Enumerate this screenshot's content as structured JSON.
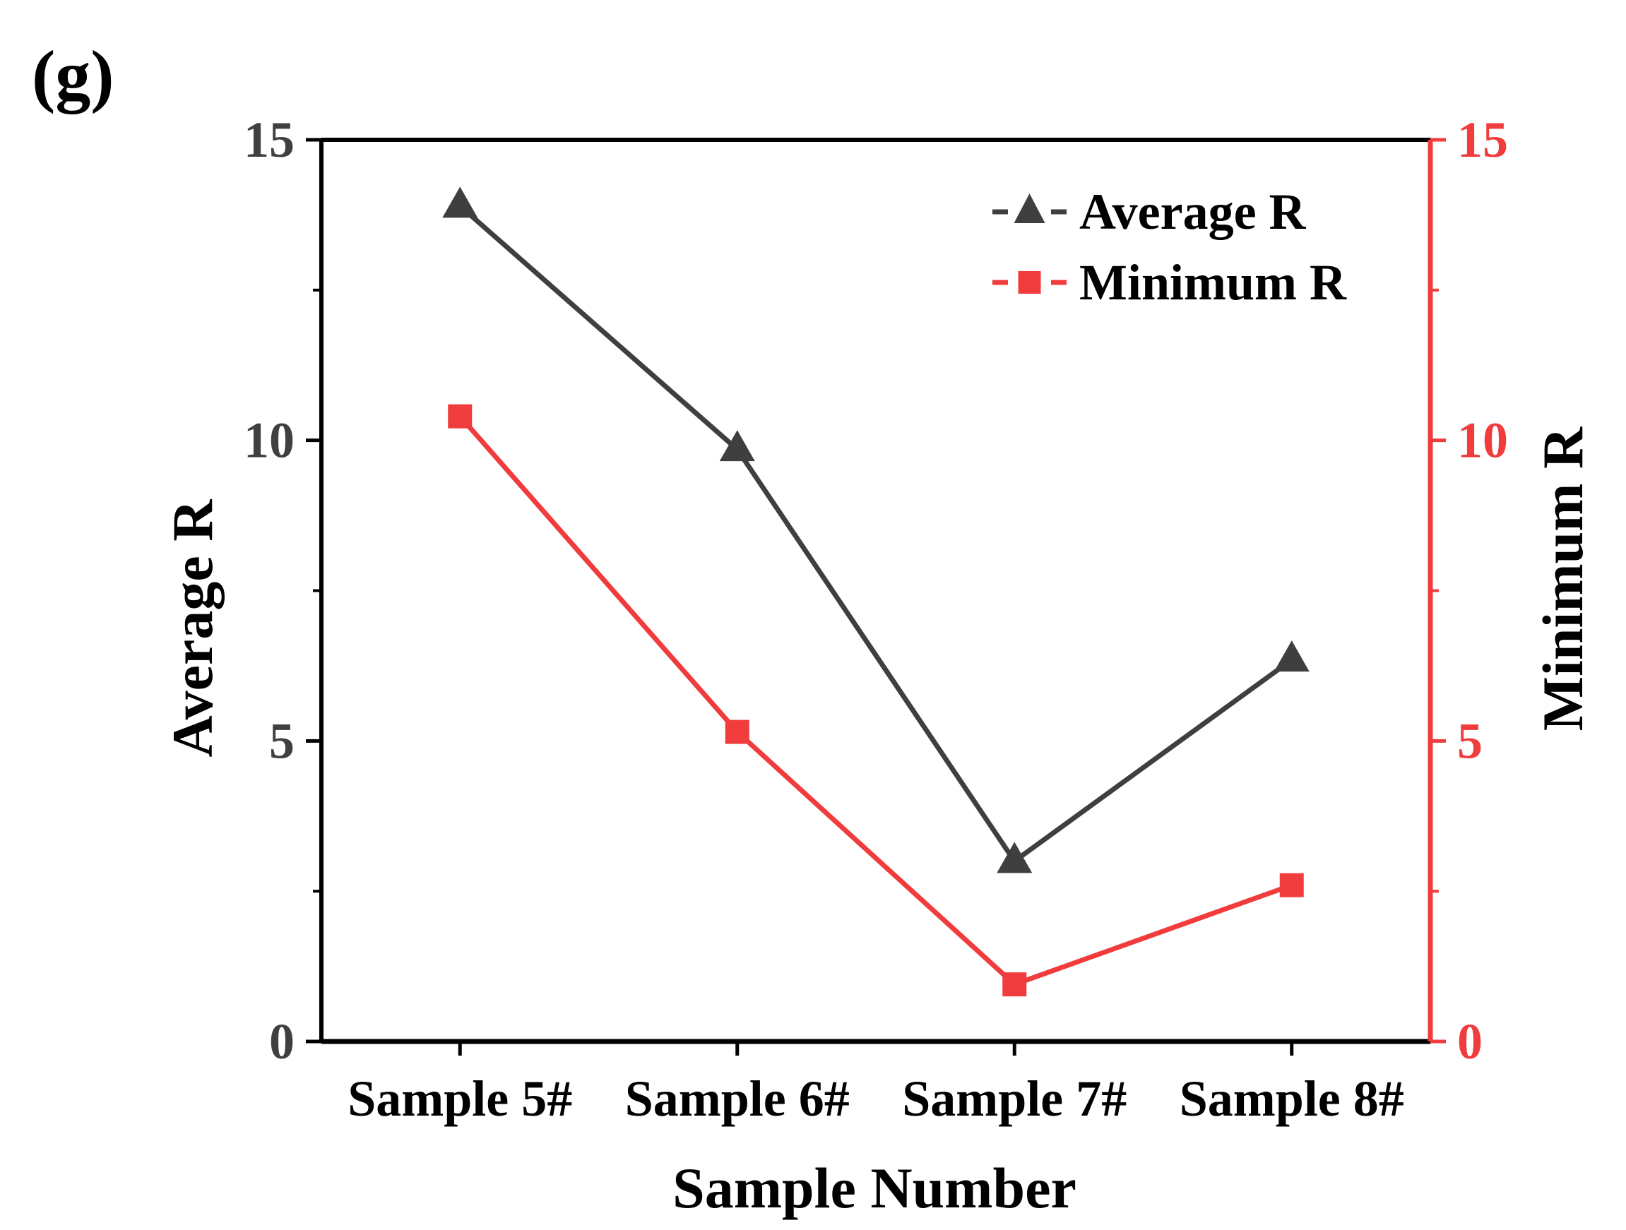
{
  "panel_label": "(g)",
  "colors": {
    "left_axis": "#404040",
    "right_axis": "#f03c3c",
    "average_series": "#3f3f3f",
    "minimum_series": "#f03c3c",
    "frame": "#000000"
  },
  "chart_data": {
    "type": "line",
    "title": "",
    "xlabel": "Sample Number",
    "ylabel_left": "Average R",
    "ylabel_right": "Minimum R",
    "categories": [
      "Sample 5#",
      "Sample 6#",
      "Sample 7#",
      "Sample 8#"
    ],
    "ylim_left": [
      0,
      15
    ],
    "ylim_right": [
      0,
      15
    ],
    "yticks_left": [
      "0",
      "5",
      "10",
      "15"
    ],
    "yticks_right": [
      "0",
      "5",
      "10",
      "15"
    ],
    "grid": false,
    "legend_position": "top-right",
    "series": [
      {
        "name": "Average R",
        "axis": "left",
        "marker": "triangle",
        "values": [
          13.9,
          9.85,
          3.0,
          6.35
        ]
      },
      {
        "name": "Minimum R",
        "axis": "right",
        "marker": "square",
        "values": [
          10.4,
          5.15,
          0.95,
          2.6
        ]
      }
    ]
  }
}
